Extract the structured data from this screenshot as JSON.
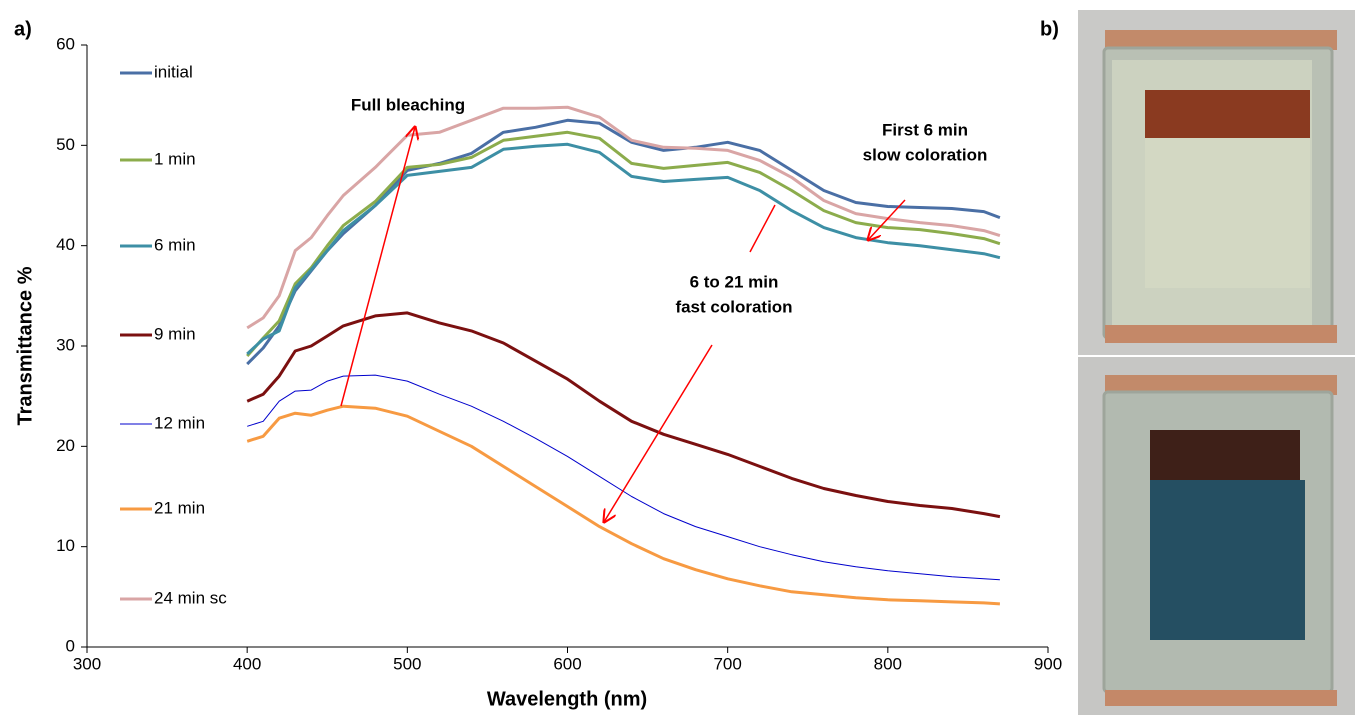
{
  "chart_data": {
    "type": "line",
    "panel_labels": [
      "a)",
      "b)"
    ],
    "xlabel": "Wavelength (nm)",
    "ylabel": "Transmittance %",
    "xlim": [
      300,
      900
    ],
    "xticks": [
      300,
      400,
      500,
      600,
      700,
      800,
      900
    ],
    "ylim": [
      0,
      60
    ],
    "yticks": [
      0,
      10,
      20,
      30,
      40,
      50,
      60
    ],
    "grid": false,
    "legend": "left",
    "x": [
      400,
      410,
      420,
      430,
      440,
      450,
      460,
      480,
      500,
      520,
      540,
      560,
      580,
      600,
      620,
      640,
      660,
      680,
      700,
      720,
      740,
      760,
      780,
      800,
      820,
      840,
      860,
      870
    ],
    "series": [
      {
        "name": "initial",
        "color": "#4a6fa5",
        "width": 3,
        "values": [
          28.2,
          29.8,
          32,
          35.5,
          37.5,
          39.5,
          41.2,
          44,
          47.5,
          48.2,
          49.2,
          51.3,
          51.8,
          52.5,
          52.2,
          50.3,
          49.5,
          49.8,
          50.3,
          49.5,
          47.5,
          45.5,
          44.3,
          43.9,
          43.8,
          43.7,
          43.4,
          42.8
        ]
      },
      {
        "name": "1 min",
        "color": "#8cac4c",
        "width": 3,
        "values": [
          29,
          30.8,
          32.5,
          36.2,
          37.8,
          40,
          42,
          44.4,
          47.8,
          48.1,
          48.8,
          50.5,
          50.9,
          51.3,
          50.7,
          48.2,
          47.7,
          48,
          48.3,
          47.3,
          45.5,
          43.5,
          42.3,
          41.8,
          41.6,
          41.2,
          40.7,
          40.2
        ]
      },
      {
        "name": "6 min",
        "color": "#3d8fa5",
        "width": 3,
        "values": [
          29.2,
          30.7,
          31.5,
          35.8,
          37.6,
          39.5,
          41.5,
          44,
          47,
          47.4,
          47.8,
          49.6,
          49.9,
          50.1,
          49.3,
          46.9,
          46.4,
          46.6,
          46.8,
          45.5,
          43.5,
          41.8,
          40.8,
          40.3,
          40,
          39.6,
          39.2,
          38.8
        ]
      },
      {
        "name": "9 min",
        "color": "#7b1010",
        "width": 3,
        "values": [
          24.5,
          25.2,
          27,
          29.5,
          30,
          31,
          32,
          33,
          33.3,
          32.3,
          31.5,
          30.3,
          28.5,
          26.7,
          24.5,
          22.5,
          21.2,
          20.2,
          19.2,
          18,
          16.8,
          15.8,
          15.1,
          14.5,
          14.1,
          13.8,
          13.3,
          13
        ]
      },
      {
        "name": "12 min",
        "color": "#0000cc",
        "width": 1,
        "values": [
          22,
          22.5,
          24.5,
          25.5,
          25.6,
          26.5,
          27,
          27.1,
          26.5,
          25.2,
          24,
          22.5,
          20.8,
          19,
          17,
          15,
          13.3,
          12,
          11,
          10,
          9.2,
          8.5,
          8,
          7.6,
          7.3,
          7,
          6.8,
          6.7
        ]
      },
      {
        "name": "21 min",
        "color": "#f79a42",
        "width": 3,
        "values": [
          20.5,
          21,
          22.8,
          23.3,
          23.1,
          23.6,
          24,
          23.8,
          23,
          21.5,
          20,
          18,
          16,
          14,
          12,
          10.3,
          8.8,
          7.7,
          6.8,
          6.1,
          5.5,
          5.2,
          4.9,
          4.7,
          4.6,
          4.5,
          4.4,
          4.3
        ]
      },
      {
        "name": "24 min sc",
        "color": "#d9a5a5",
        "width": 3,
        "values": [
          31.8,
          32.8,
          35,
          39.5,
          40.8,
          43,
          45,
          47.8,
          51,
          51.3,
          52.5,
          53.7,
          53.7,
          53.8,
          52.8,
          50.5,
          49.8,
          49.7,
          49.5,
          48.5,
          46.8,
          44.5,
          43.2,
          42.7,
          42.3,
          42,
          41.5,
          41
        ]
      }
    ],
    "annotations": [
      {
        "lines": [
          "Full bleaching"
        ],
        "color": "#ff0000"
      },
      {
        "lines": [
          "First 6 min",
          "slow coloration"
        ],
        "color": "#ff0000"
      },
      {
        "lines": [
          "6 to 21 min",
          "fast coloration"
        ],
        "color": "#ff0000"
      }
    ]
  }
}
